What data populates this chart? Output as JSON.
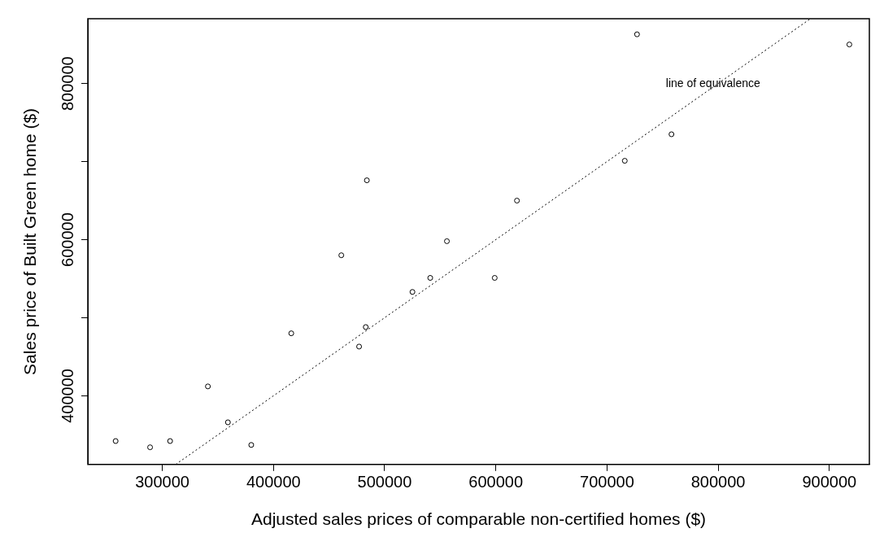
{
  "chart_data": {
    "type": "scatter",
    "xlabel": "Adjusted sales prices of comparable non-certified homes ($)",
    "ylabel": "Sales price of Built Green home ($)",
    "x": [
      258000,
      289000,
      307000,
      341000,
      359000,
      380000,
      416000,
      461000,
      477000,
      483000,
      484000,
      525000,
      541000,
      556000,
      599000,
      619000,
      716000,
      727000,
      758000,
      918000
    ],
    "series": [
      {
        "type": "scatter",
        "color": "#000000",
        "marker": "circle",
        "values": [
          342000,
          334000,
          342000,
          412000,
          366000,
          337000,
          480000,
          580000,
          463000,
          488000,
          676000,
          533000,
          551000,
          598000,
          551000,
          650000,
          701000,
          863000,
          735000,
          850000
        ]
      },
      {
        "type": "line",
        "color": "#000000",
        "line_style": "dotted",
        "marker": "none",
        "x": [
          312000,
          883000
        ],
        "values": [
          312000,
          883000
        ]
      }
    ],
    "xlim": [
      233000,
      936000
    ],
    "ylim": [
      312000,
      883000
    ],
    "xticks": [
      300000,
      400000,
      500000,
      600000,
      700000,
      800000,
      900000
    ],
    "yticks": [
      400000,
      {
        "value": 500000,
        "label": null
      },
      600000,
      {
        "value": 700000,
        "label": null
      },
      800000
    ],
    "annotations": [
      "line of equivalence"
    ],
    "grid": false,
    "legend": false
  }
}
